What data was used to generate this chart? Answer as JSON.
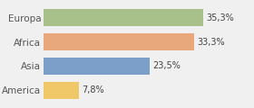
{
  "categories": [
    "America",
    "Asia",
    "Africa",
    "Europa"
  ],
  "values": [
    7.8,
    23.5,
    33.3,
    35.3
  ],
  "labels": [
    "7,8%",
    "23,5%",
    "33,3%",
    "35,3%"
  ],
  "bar_colors": [
    "#f0c868",
    "#7b9fc8",
    "#e8a87c",
    "#a8c08a"
  ],
  "background_color": "#f0f0f0",
  "xlim": [
    0,
    46
  ],
  "label_fontsize": 7.0,
  "tick_fontsize": 7.5,
  "bar_height": 0.72
}
